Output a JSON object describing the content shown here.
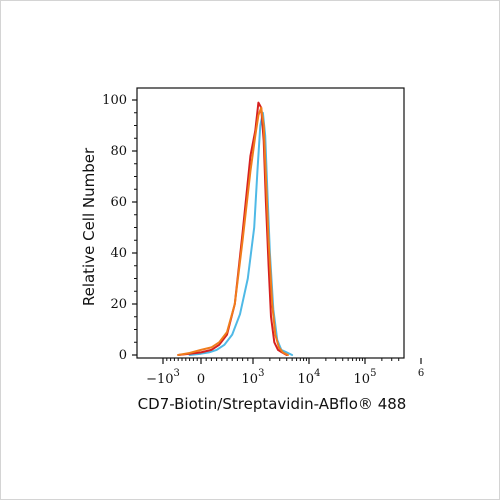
{
  "chart_data": {
    "type": "line",
    "title": "",
    "xlabel": "CD7-Biotin/Streptavidin-ABflo® 488",
    "ylabel": "Relative Cell Number",
    "x_scale": "biexponential",
    "ylim": [
      0,
      100
    ],
    "yticks": [
      0,
      20,
      40,
      60,
      80,
      100
    ],
    "xticks": [
      {
        "value": -1000,
        "label": "−10",
        "exp": "3"
      },
      {
        "value": 0,
        "label": "0",
        "exp": ""
      },
      {
        "value": 1000,
        "label": "10",
        "exp": "3"
      },
      {
        "value": 10000,
        "label": "10",
        "exp": "4"
      },
      {
        "value": 100000,
        "label": "10",
        "exp": "5"
      },
      {
        "value": 1000000,
        "label": "",
        "exp": "6"
      }
    ],
    "grid": false,
    "series": [
      {
        "color": "#4fb9e6",
        "x": [
          -300,
          0,
          150,
          300,
          450,
          600,
          750,
          900,
          1050,
          1200,
          1350,
          1500,
          1650,
          1800,
          2000,
          2300,
          2700,
          3200,
          4000,
          5000
        ],
        "y": [
          0,
          0.5,
          1,
          2,
          4,
          8,
          16,
          30,
          50,
          72,
          90,
          95,
          86,
          65,
          40,
          18,
          6,
          2,
          1,
          0
        ]
      },
      {
        "color": "#d62020",
        "x": [
          -600,
          -300,
          0,
          200,
          350,
          500,
          650,
          800,
          950,
          1100,
          1250,
          1400,
          1550,
          1700,
          1900,
          2100,
          2400,
          2800,
          3300,
          4000
        ],
        "y": [
          0,
          0.5,
          1,
          2,
          4,
          8,
          20,
          48,
          78,
          88,
          99,
          97,
          84,
          60,
          35,
          15,
          5,
          2,
          1,
          0
        ]
      },
      {
        "color": "#f07c1c",
        "x": [
          -600,
          -300,
          0,
          200,
          350,
          500,
          650,
          800,
          950,
          1100,
          1250,
          1400,
          1550,
          1700,
          1900,
          2200,
          2500,
          2900,
          3400,
          4200
        ],
        "y": [
          0,
          0.8,
          2,
          3,
          5,
          9,
          20,
          45,
          72,
          86,
          94,
          97,
          90,
          70,
          45,
          20,
          8,
          3,
          1,
          0
        ]
      }
    ]
  }
}
